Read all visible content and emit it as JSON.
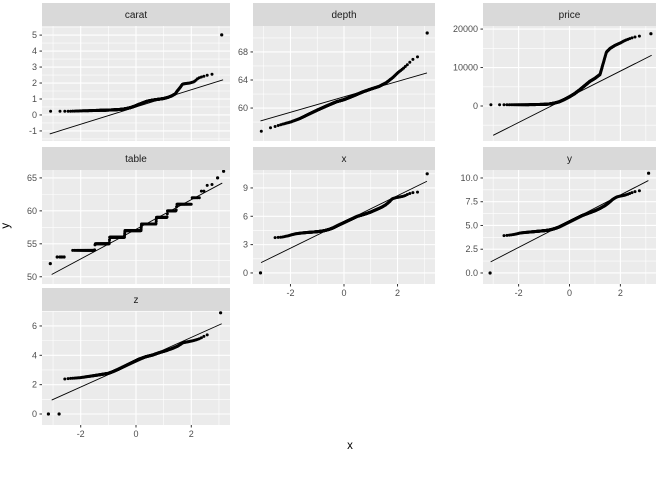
{
  "figure": {
    "x_axis_title": "x",
    "y_axis_title": "y",
    "colors": {
      "panel_background": "#EBEBEB",
      "strip_background": "#D9D9D9",
      "gridline": "#FFFFFF",
      "point": "#000000",
      "qq_line": "#000000",
      "axis_text": "#4D4D4D",
      "strip_text": "#1A1A1A",
      "tick_mark": "#333333"
    }
  },
  "chart_data": {
    "type": "scatter",
    "subtype": "qq_plot_facet_wrap",
    "grid": true,
    "legend": "none",
    "xlabel": "x",
    "ylabel": "y",
    "x_ticks": {
      "values": [
        -2,
        0,
        2
      ],
      "labels": [
        "-2",
        "0",
        "2"
      ]
    },
    "xlim": [
      -3.4,
      3.4
    ],
    "facets": [
      {
        "name": "carat",
        "row": 0,
        "col": 0,
        "show_x_axis": false,
        "ylim": [
          -1.63,
          5.57
        ],
        "y_ticks": {
          "values": [
            -1,
            0,
            1,
            2,
            3,
            4,
            5
          ],
          "labels": [
            "-1",
            "0",
            "1",
            "2",
            "3",
            "4",
            "5"
          ]
        },
        "line": {
          "slope": 0.54,
          "intercept": 0.5,
          "x_start": -3.12,
          "x_end": 3.15
        },
        "n_points": 500,
        "q_range": [
          -3.1,
          2.8
        ],
        "curve": [
          [
            -3.1,
            0.23
          ],
          [
            -2.7,
            0.23
          ],
          [
            -2.3,
            0.24
          ],
          [
            -1.9,
            0.26
          ],
          [
            -1.5,
            0.28
          ],
          [
            -1.1,
            0.3
          ],
          [
            -0.8,
            0.32
          ],
          [
            -0.55,
            0.35
          ],
          [
            -0.38,
            0.39
          ],
          [
            -0.2,
            0.46
          ],
          [
            -0.05,
            0.55
          ],
          [
            0.1,
            0.66
          ],
          [
            0.25,
            0.76
          ],
          [
            0.4,
            0.86
          ],
          [
            0.6,
            0.93
          ],
          [
            0.8,
            0.98
          ],
          [
            1.0,
            1.03
          ],
          [
            1.15,
            1.1
          ],
          [
            1.3,
            1.2
          ],
          [
            1.42,
            1.32
          ],
          [
            1.5,
            1.52
          ],
          [
            1.6,
            1.73
          ],
          [
            1.68,
            1.93
          ],
          [
            1.8,
            1.97
          ],
          [
            1.95,
            2.0
          ],
          [
            2.1,
            2.08
          ],
          [
            2.25,
            2.3
          ],
          [
            2.4,
            2.4
          ],
          [
            2.6,
            2.5
          ],
          [
            2.8,
            2.57
          ]
        ],
        "extra_points": [
          [
            3.1,
            5.01
          ]
        ]
      },
      {
        "name": "depth",
        "row": 0,
        "col": 1,
        "show_x_axis": false,
        "ylim": [
          55.3,
          71.7
        ],
        "y_ticks": {
          "values": [
            60,
            64,
            68
          ],
          "labels": [
            "60",
            "64",
            "68"
          ]
        },
        "line": {
          "slope": 1.1,
          "intercept": 61.6,
          "x_start": -3.12,
          "x_end": 3.1
        },
        "n_points": 500,
        "q_range": [
          -3.1,
          2.75
        ],
        "curve": [
          [
            -3.09,
            56.7
          ],
          [
            -2.75,
            57.2
          ],
          [
            -2.5,
            57.45
          ],
          [
            -2.3,
            57.7
          ],
          [
            -2.0,
            58.0
          ],
          [
            -1.65,
            58.5
          ],
          [
            -1.33,
            59.1
          ],
          [
            -1.0,
            59.7
          ],
          [
            -0.65,
            60.3
          ],
          [
            -0.28,
            60.9
          ],
          [
            0,
            61.2
          ],
          [
            0.33,
            61.7
          ],
          [
            0.7,
            62.3
          ],
          [
            1.0,
            62.7
          ],
          [
            1.32,
            63.1
          ],
          [
            1.57,
            63.6
          ],
          [
            1.81,
            64.3
          ],
          [
            2.0,
            65.0
          ],
          [
            2.2,
            65.6
          ],
          [
            2.37,
            66.2
          ],
          [
            2.56,
            66.9
          ],
          [
            2.74,
            67.3
          ]
        ],
        "extra_points": [
          [
            3.11,
            70.7
          ]
        ]
      },
      {
        "name": "price",
        "row": 0,
        "col": 2,
        "show_x_axis": false,
        "ylim": [
          -9100,
          20800
        ],
        "y_ticks": {
          "values": [
            0,
            10000,
            20000
          ],
          "labels": [
            "0",
            "10000",
            "20000"
          ]
        },
        "line": {
          "slope": 3340,
          "intercept": 2400,
          "x_start": -3.0,
          "x_end": 3.23
        },
        "n_points": 500,
        "q_range": [
          -3.1,
          3.02
        ],
        "curve": [
          [
            -3.1,
            300
          ],
          [
            -2.7,
            310
          ],
          [
            -2.4,
            320
          ],
          [
            -2.0,
            330
          ],
          [
            -1.6,
            350
          ],
          [
            -1.3,
            380
          ],
          [
            -1.0,
            430
          ],
          [
            -0.8,
            520
          ],
          [
            -0.6,
            750
          ],
          [
            -0.4,
            1100
          ],
          [
            -0.2,
            1700
          ],
          [
            0,
            2400
          ],
          [
            0.2,
            3200
          ],
          [
            0.4,
            4200
          ],
          [
            0.6,
            5300
          ],
          [
            0.8,
            6400
          ],
          [
            1.0,
            7200
          ],
          [
            1.2,
            8200
          ],
          [
            1.3,
            10500
          ],
          [
            1.45,
            14000
          ],
          [
            1.6,
            15000
          ],
          [
            1.8,
            15800
          ],
          [
            2.0,
            16400
          ],
          [
            2.2,
            17100
          ],
          [
            2.4,
            17600
          ],
          [
            2.6,
            18000
          ],
          [
            2.8,
            18250
          ],
          [
            3.0,
            18400
          ]
        ],
        "extra_points": [
          [
            3.2,
            18800
          ]
        ]
      },
      {
        "name": "table",
        "row": 1,
        "col": 0,
        "show_x_axis": false,
        "ylim": [
          48.9,
          66.2
        ],
        "y_ticks": {
          "values": [
            50,
            55,
            60,
            65
          ],
          "labels": [
            "50",
            "55",
            "60",
            "65"
          ]
        },
        "line": {
          "slope": 2.25,
          "intercept": 57.2,
          "x_start": -3.05,
          "x_end": 3.12
        },
        "n_points": 500,
        "q_range": [
          -2.35,
          2.75
        ],
        "curve": [
          [
            -2.35,
            54
          ],
          [
            -1.5,
            54
          ],
          [
            -1.48,
            55
          ],
          [
            -0.97,
            55
          ],
          [
            -0.95,
            56
          ],
          [
            -0.42,
            56
          ],
          [
            -0.4,
            57
          ],
          [
            0.18,
            57
          ],
          [
            0.2,
            58
          ],
          [
            0.72,
            58
          ],
          [
            0.74,
            59
          ],
          [
            1.12,
            59
          ],
          [
            1.14,
            60
          ],
          [
            1.45,
            60
          ],
          [
            1.48,
            61
          ],
          [
            2.0,
            61
          ],
          [
            2.03,
            62
          ],
          [
            2.3,
            62
          ],
          [
            2.33,
            63
          ],
          [
            2.55,
            63
          ],
          [
            2.58,
            64
          ],
          [
            2.75,
            64
          ]
        ],
        "extra_points": [
          [
            -3.1,
            52
          ],
          [
            -2.85,
            53
          ],
          [
            -2.75,
            53
          ],
          [
            -2.68,
            53
          ],
          [
            -2.6,
            53
          ],
          [
            2.95,
            65
          ],
          [
            3.17,
            66
          ]
        ]
      },
      {
        "name": "x",
        "row": 1,
        "col": 1,
        "show_x_axis": true,
        "ylim": [
          -1.17,
          10.9
        ],
        "y_ticks": {
          "values": [
            0,
            3,
            6,
            9
          ],
          "labels": [
            "0",
            "3",
            "6",
            "9"
          ]
        },
        "line": {
          "slope": 1.39,
          "intercept": 5.4,
          "x_start": -3.1,
          "x_end": 3.1
        },
        "n_points": 500,
        "q_range": [
          -2.72,
          2.95
        ],
        "curve": [
          [
            -2.7,
            3.72
          ],
          [
            -2.5,
            3.75
          ],
          [
            -2.3,
            3.8
          ],
          [
            -2.1,
            3.92
          ],
          [
            -1.95,
            4.05
          ],
          [
            -1.8,
            4.15
          ],
          [
            -1.6,
            4.22
          ],
          [
            -1.4,
            4.28
          ],
          [
            -1.2,
            4.32
          ],
          [
            -1.0,
            4.37
          ],
          [
            -0.85,
            4.42
          ],
          [
            -0.7,
            4.5
          ],
          [
            -0.55,
            4.62
          ],
          [
            -0.4,
            4.78
          ],
          [
            -0.25,
            5.0
          ],
          [
            -0.1,
            5.2
          ],
          [
            0.05,
            5.4
          ],
          [
            0.2,
            5.6
          ],
          [
            0.35,
            5.8
          ],
          [
            0.5,
            6.0
          ],
          [
            0.65,
            6.12
          ],
          [
            0.8,
            6.25
          ],
          [
            1.0,
            6.45
          ],
          [
            1.2,
            6.7
          ],
          [
            1.4,
            6.95
          ],
          [
            1.55,
            7.2
          ],
          [
            1.7,
            7.55
          ],
          [
            1.8,
            7.85
          ],
          [
            1.95,
            7.98
          ],
          [
            2.1,
            8.05
          ],
          [
            2.25,
            8.15
          ],
          [
            2.4,
            8.35
          ],
          [
            2.55,
            8.5
          ],
          [
            2.7,
            8.55
          ],
          [
            2.9,
            8.6
          ]
        ],
        "extra_points": [
          [
            -3.12,
            0
          ],
          [
            3.11,
            10.5
          ]
        ]
      },
      {
        "name": "y",
        "row": 1,
        "col": 2,
        "show_x_axis": true,
        "ylim": [
          -1.16,
          10.84
        ],
        "y_ticks": {
          "values": [
            0,
            2.5,
            5,
            7.5,
            10
          ],
          "labels": [
            "0.0",
            "2.5",
            "5.0",
            "7.5",
            "10.0"
          ]
        },
        "line": {
          "slope": 1.38,
          "intercept": 5.45,
          "x_start": -3.1,
          "x_end": 3.1
        },
        "n_points": 500,
        "q_range": [
          -2.72,
          2.95
        ],
        "curve": [
          [
            -2.7,
            3.9
          ],
          [
            -2.5,
            3.95
          ],
          [
            -2.3,
            4.0
          ],
          [
            -2.1,
            4.1
          ],
          [
            -1.95,
            4.2
          ],
          [
            -1.8,
            4.25
          ],
          [
            -1.6,
            4.3
          ],
          [
            -1.4,
            4.35
          ],
          [
            -1.2,
            4.4
          ],
          [
            -1.0,
            4.45
          ],
          [
            -0.85,
            4.5
          ],
          [
            -0.7,
            4.58
          ],
          [
            -0.55,
            4.7
          ],
          [
            -0.4,
            4.85
          ],
          [
            -0.25,
            5.05
          ],
          [
            -0.1,
            5.25
          ],
          [
            0.05,
            5.45
          ],
          [
            0.2,
            5.65
          ],
          [
            0.35,
            5.85
          ],
          [
            0.5,
            6.05
          ],
          [
            0.65,
            6.2
          ],
          [
            0.8,
            6.35
          ],
          [
            1.0,
            6.55
          ],
          [
            1.2,
            6.8
          ],
          [
            1.4,
            7.1
          ],
          [
            1.55,
            7.4
          ],
          [
            1.7,
            7.75
          ],
          [
            1.85,
            8.0
          ],
          [
            2.0,
            8.1
          ],
          [
            2.2,
            8.2
          ],
          [
            2.4,
            8.4
          ],
          [
            2.55,
            8.55
          ],
          [
            2.7,
            8.65
          ],
          [
            2.9,
            8.7
          ]
        ],
        "extra_points": [
          [
            -3.12,
            0
          ],
          [
            3.11,
            10.5
          ]
        ]
      },
      {
        "name": "z",
        "row": 2,
        "col": 0,
        "show_x_axis": true,
        "ylim": [
          -0.75,
          7.02
        ],
        "y_ticks": {
          "values": [
            0,
            2,
            4,
            6
          ],
          "labels": [
            "0",
            "2",
            "4",
            "6"
          ]
        },
        "line": {
          "slope": 0.846,
          "intercept": 3.53,
          "x_start": -3.05,
          "x_end": 3.1
        },
        "n_points": 500,
        "q_range": [
          -2.65,
          2.7
        ],
        "curve": [
          [
            -2.62,
            2.38
          ],
          [
            -2.4,
            2.42
          ],
          [
            -2.2,
            2.45
          ],
          [
            -2.0,
            2.48
          ],
          [
            -1.75,
            2.55
          ],
          [
            -1.4,
            2.65
          ],
          [
            -1.0,
            2.77
          ],
          [
            -0.83,
            2.89
          ],
          [
            -0.64,
            3.05
          ],
          [
            -0.4,
            3.27
          ],
          [
            -0.15,
            3.5
          ],
          [
            0.1,
            3.73
          ],
          [
            0.35,
            3.9
          ],
          [
            0.6,
            4.02
          ],
          [
            0.84,
            4.18
          ],
          [
            1.09,
            4.32
          ],
          [
            1.33,
            4.48
          ],
          [
            1.52,
            4.64
          ],
          [
            1.7,
            4.86
          ],
          [
            1.9,
            4.93
          ],
          [
            2.07,
            5.0
          ],
          [
            2.26,
            5.1
          ],
          [
            2.44,
            5.27
          ],
          [
            2.57,
            5.39
          ],
          [
            2.69,
            5.4
          ]
        ],
        "extra_points": [
          [
            -3.17,
            0
          ],
          [
            -2.78,
            0
          ],
          [
            3.06,
            6.9
          ]
        ]
      }
    ]
  }
}
